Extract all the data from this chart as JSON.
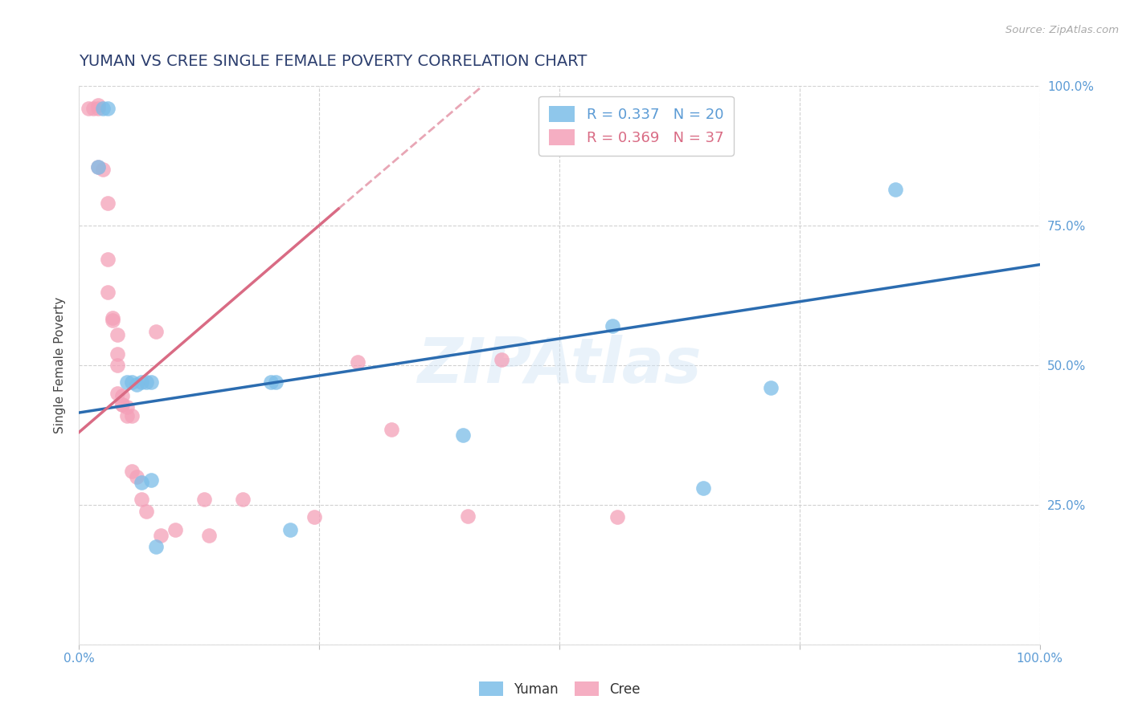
{
  "title": "YUMAN VS CREE SINGLE FEMALE POVERTY CORRELATION CHART",
  "source_text": "Source: ZipAtlas.com",
  "ylabel": "Single Female Poverty",
  "xlim": [
    0,
    1
  ],
  "ylim": [
    0,
    1
  ],
  "background_color": "#ffffff",
  "grid_color": "#cccccc",
  "yuman_color": "#7bbde8",
  "cree_color": "#f4a0b8",
  "yuman_R": 0.337,
  "yuman_N": 20,
  "cree_R": 0.369,
  "cree_N": 37,
  "yuman_line": [
    [
      0.0,
      0.415
    ],
    [
      1.0,
      0.68
    ]
  ],
  "cree_line_solid": [
    [
      0.0,
      0.38
    ],
    [
      0.27,
      0.78
    ]
  ],
  "cree_line_dashed": [
    [
      0.27,
      0.78
    ],
    [
      0.42,
      1.0
    ]
  ],
  "yuman_points": [
    [
      0.02,
      0.855
    ],
    [
      0.025,
      0.96
    ],
    [
      0.03,
      0.96
    ],
    [
      0.05,
      0.47
    ],
    [
      0.055,
      0.47
    ],
    [
      0.06,
      0.465
    ],
    [
      0.065,
      0.47
    ],
    [
      0.065,
      0.29
    ],
    [
      0.07,
      0.47
    ],
    [
      0.075,
      0.47
    ],
    [
      0.075,
      0.295
    ],
    [
      0.08,
      0.175
    ],
    [
      0.2,
      0.47
    ],
    [
      0.205,
      0.47
    ],
    [
      0.22,
      0.205
    ],
    [
      0.4,
      0.375
    ],
    [
      0.555,
      0.57
    ],
    [
      0.65,
      0.28
    ],
    [
      0.72,
      0.46
    ],
    [
      0.85,
      0.815
    ]
  ],
  "cree_points": [
    [
      0.01,
      0.96
    ],
    [
      0.015,
      0.96
    ],
    [
      0.02,
      0.965
    ],
    [
      0.02,
      0.96
    ],
    [
      0.02,
      0.855
    ],
    [
      0.025,
      0.85
    ],
    [
      0.03,
      0.79
    ],
    [
      0.03,
      0.69
    ],
    [
      0.03,
      0.63
    ],
    [
      0.035,
      0.585
    ],
    [
      0.035,
      0.58
    ],
    [
      0.04,
      0.555
    ],
    [
      0.04,
      0.52
    ],
    [
      0.04,
      0.5
    ],
    [
      0.04,
      0.45
    ],
    [
      0.045,
      0.445
    ],
    [
      0.045,
      0.43
    ],
    [
      0.045,
      0.43
    ],
    [
      0.05,
      0.425
    ],
    [
      0.05,
      0.41
    ],
    [
      0.055,
      0.41
    ],
    [
      0.055,
      0.31
    ],
    [
      0.06,
      0.3
    ],
    [
      0.065,
      0.26
    ],
    [
      0.07,
      0.238
    ],
    [
      0.08,
      0.56
    ],
    [
      0.085,
      0.195
    ],
    [
      0.1,
      0.205
    ],
    [
      0.13,
      0.26
    ],
    [
      0.135,
      0.195
    ],
    [
      0.17,
      0.26
    ],
    [
      0.245,
      0.228
    ],
    [
      0.29,
      0.505
    ],
    [
      0.325,
      0.385
    ],
    [
      0.405,
      0.23
    ],
    [
      0.44,
      0.51
    ],
    [
      0.56,
      0.228
    ]
  ],
  "legend_yuman_label": "R = 0.337   N = 20",
  "legend_cree_label": "R = 0.369   N = 37",
  "title_color": "#2c3e6e",
  "right_axis_color": "#5b9bd5",
  "bottom_axis_color": "#5b9bd5",
  "source_color": "#aaaaaa",
  "watermark_text": "ZIPAtlas"
}
